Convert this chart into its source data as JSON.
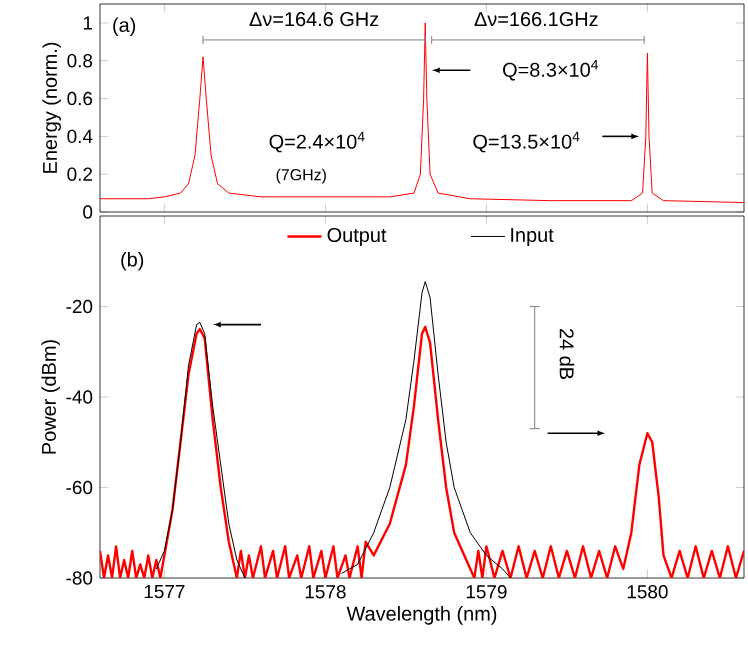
{
  "chart_data": [
    {
      "type": "line",
      "xlim": [
        1576.6,
        1580.6
      ],
      "xticks": [
        1577,
        1578,
        1579,
        1580
      ],
      "ylim": [
        0,
        1.1
      ],
      "yticks": [
        0,
        0.2,
        0.4,
        0.6,
        0.8,
        1
      ],
      "ylabel": "Energy (norm.)",
      "tick_labels": "y",
      "series": [
        {
          "color": "#ff0000",
          "x": [
            1576.6,
            1576.9,
            1577.0,
            1577.1,
            1577.15,
            1577.19,
            1577.22,
            1577.24,
            1577.26,
            1577.29,
            1577.33,
            1577.4,
            1577.6,
            1578.0,
            1578.4,
            1578.55,
            1578.59,
            1578.61,
            1578.62,
            1578.63,
            1578.65,
            1578.7,
            1578.9,
            1579.4,
            1579.9,
            1579.97,
            1579.99,
            1580.0,
            1580.01,
            1580.03,
            1580.1,
            1580.6
          ],
          "values": [
            0.07,
            0.07,
            0.08,
            0.1,
            0.15,
            0.3,
            0.6,
            0.82,
            0.6,
            0.3,
            0.15,
            0.1,
            0.08,
            0.08,
            0.08,
            0.1,
            0.2,
            0.6,
            1.0,
            0.6,
            0.2,
            0.1,
            0.07,
            0.06,
            0.06,
            0.1,
            0.4,
            0.84,
            0.4,
            0.1,
            0.06,
            0.05
          ]
        }
      ],
      "annotations": [
        "(a)",
        "Δν=164.6 GHz",
        "Δν=166.1GHz",
        "Q=8.3×10$^{4}$",
        "Q=2.4×10$^{4}$",
        "(7GHz)",
        "Q=13.5×10$^{4}$"
      ]
    },
    {
      "type": "line",
      "xlim": [
        1576.6,
        1580.6
      ],
      "xticks": [
        1577,
        1578,
        1579,
        1580
      ],
      "ylim": [
        -80,
        0
      ],
      "yticks": [
        -80,
        -60,
        -40,
        -20
      ],
      "xlabel": "Wavelength (nm)",
      "ylabel": "Power (dBm)",
      "legend": "top",
      "series": [
        {
          "name": "Output",
          "color": "#ff0000",
          "x": [
            1576.6,
            1576.625,
            1576.65,
            1576.675,
            1576.7,
            1576.725,
            1576.75,
            1576.775,
            1576.8,
            1576.825,
            1576.85,
            1576.875,
            1576.9,
            1576.925,
            1576.95,
            1576.975,
            1577.0,
            1577.05,
            1577.1,
            1577.15,
            1577.2,
            1577.22,
            1577.25,
            1577.3,
            1577.35,
            1577.4,
            1577.45,
            1577.475,
            1577.5,
            1577.525,
            1577.55,
            1577.6,
            1577.625,
            1577.675,
            1577.7,
            1577.75,
            1577.775,
            1577.825,
            1577.85,
            1577.9,
            1577.925,
            1577.975,
            1578.0,
            1578.05,
            1578.075,
            1578.125,
            1578.15,
            1578.2,
            1578.225,
            1578.25,
            1578.3,
            1578.4,
            1578.5,
            1578.55,
            1578.6,
            1578.62,
            1578.65,
            1578.7,
            1578.75,
            1578.8,
            1578.9,
            1578.925,
            1578.95,
            1578.975,
            1579.0,
            1579.05,
            1579.1,
            1579.15,
            1579.2,
            1579.25,
            1579.3,
            1579.35,
            1579.4,
            1579.45,
            1579.5,
            1579.55,
            1579.6,
            1579.65,
            1579.7,
            1579.75,
            1579.8,
            1579.85,
            1579.9,
            1579.95,
            1580.0,
            1580.03,
            1580.07,
            1580.1,
            1580.15,
            1580.2,
            1580.25,
            1580.3,
            1580.35,
            1580.4,
            1580.45,
            1580.5,
            1580.55,
            1580.6
          ],
          "values": [
            -74,
            -80,
            -75,
            -80,
            -73,
            -80,
            -76,
            -80,
            -74,
            -80,
            -77,
            -80,
            -75,
            -80,
            -76,
            -80,
            -75,
            -65,
            -50,
            -35,
            -26,
            -25,
            -27,
            -45,
            -60,
            -72,
            -80,
            -74,
            -80,
            -75,
            -80,
            -73,
            -80,
            -74,
            -80,
            -73,
            -80,
            -75,
            -80,
            -73,
            -80,
            -74,
            -80,
            -73,
            -80,
            -75,
            -80,
            -73,
            -80,
            -72,
            -75,
            -68,
            -55,
            -42,
            -26,
            -24.5,
            -28,
            -45,
            -60,
            -70,
            -78,
            -80,
            -74,
            -80,
            -73,
            -80,
            -74,
            -80,
            -73,
            -80,
            -74,
            -80,
            -73,
            -80,
            -74,
            -80,
            -73,
            -80,
            -74,
            -80,
            -73,
            -78,
            -70,
            -55,
            -48,
            -50,
            -62,
            -75,
            -80,
            -74,
            -80,
            -73,
            -80,
            -74,
            -80,
            -73,
            -80,
            -74
          ]
        },
        {
          "name": "Input",
          "color": "#000000",
          "x": [
            1576.95,
            1577.0,
            1577.05,
            1577.1,
            1577.15,
            1577.2,
            1577.22,
            1577.25,
            1577.3,
            1577.35,
            1577.4,
            1577.45,
            1577.5,
            1577.8,
            1578.1,
            1578.2,
            1578.3,
            1578.4,
            1578.5,
            1578.55,
            1578.6,
            1578.62,
            1578.65,
            1578.7,
            1578.75,
            1578.8,
            1578.9,
            1579.0,
            1579.1,
            1579.15
          ],
          "values": [
            -78,
            -74,
            -65,
            -50,
            -33,
            -24,
            -23.5,
            -26,
            -42,
            -55,
            -68,
            -76,
            -80,
            null,
            -79,
            -77,
            -70,
            -60,
            -45,
            -32,
            -17,
            -14.5,
            -18,
            -35,
            -50,
            -60,
            -70,
            -75,
            -78,
            -80
          ]
        }
      ],
      "annotations": [
        "(b)",
        "24 dB"
      ]
    }
  ]
}
